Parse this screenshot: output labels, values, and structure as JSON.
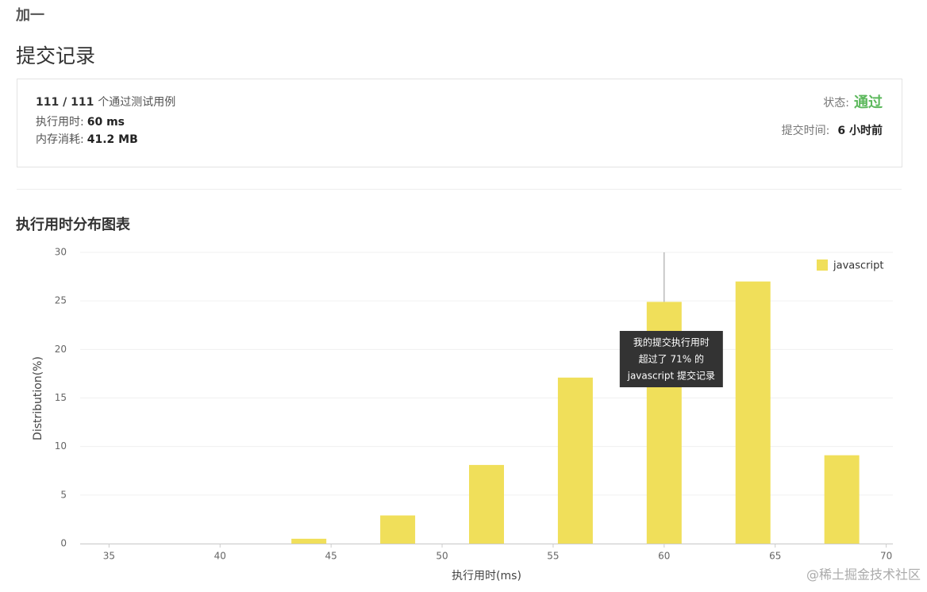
{
  "page": {
    "problem_title": "加一",
    "heading": "提交记录",
    "summary": {
      "passed": "111 / 111",
      "passed_suffix": "个通过测试用例",
      "runtime_label": "执行用时:",
      "runtime": "60 ms",
      "memory_label": "内存消耗:",
      "memory": "41.2 MB",
      "status_label": "状态:",
      "status": "通过",
      "time_label": "提交时间:",
      "time": "6 小时前"
    },
    "watermark": "@稀土掘金技术社区"
  },
  "chart_data": {
    "type": "bar",
    "title": "执行用时分布图表",
    "xlabel": "执行用时(ms)",
    "ylabel": "Distribution(%)",
    "x": [
      44,
      48,
      52,
      56,
      60,
      64,
      68
    ],
    "series": [
      {
        "name": "javascript",
        "color": "#f0df5a",
        "values": [
          0.5,
          2.9,
          8.1,
          17.1,
          24.9,
          27.0,
          9.1
        ]
      }
    ],
    "xlim": [
      33.7,
      70.3
    ],
    "xticks": [
      35,
      40,
      45,
      50,
      55,
      60,
      65,
      70
    ],
    "ylim": [
      0,
      30
    ],
    "yticks": [
      0,
      5,
      10,
      15,
      20,
      25,
      30
    ],
    "grid": true,
    "legend": "top-right",
    "annotation": [
      "我的提交执行用时",
      "超过了 71% 的",
      "javascript 提交记录"
    ]
  }
}
